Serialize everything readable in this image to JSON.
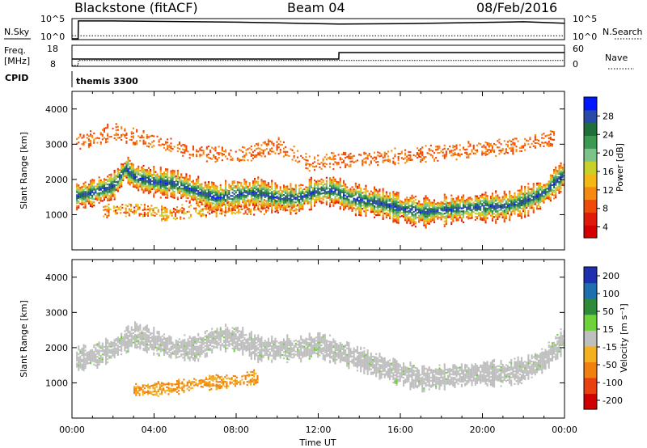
{
  "header": {
    "radar": "Blackstone (fitACF)",
    "beam": "Beam 04",
    "date": "08/Feb/2016"
  },
  "top_panels": {
    "nsky_label": "N.Sky",
    "nsky_ticks": [
      "10^5",
      "10^0"
    ],
    "nsearch_label": "N.Search",
    "nsearch_ticks": [
      "10^5",
      "10^0"
    ],
    "freq_label": "Freq.",
    "freq_unit": "[MHz]",
    "freq_ticks": [
      "18",
      "8"
    ],
    "nave_label": "Nave",
    "nave_ticks": [
      "60",
      "0"
    ],
    "cpid_label": "CPID",
    "cpid_value": "themis 3300"
  },
  "power_panel": {
    "ylabel": "Slant Range [km]",
    "yticks": [
      "4000",
      "3000",
      "2000",
      "1000"
    ],
    "colorbar_label": "Power [dB]",
    "colorbar_ticks": [
      "28",
      "24",
      "20",
      "16",
      "12",
      "8",
      "4"
    ],
    "colorbar_colors": [
      "#0018ff",
      "#2a4aa8",
      "#1f6f3a",
      "#3b9a4f",
      "#7cc38a",
      "#c8d02a",
      "#f3b814",
      "#f58a10",
      "#f04a0a",
      "#e01a0a",
      "#d40000"
    ]
  },
  "velocity_panel": {
    "ylabel": "Slant Range [km]",
    "yticks": [
      "4000",
      "3000",
      "2000",
      "1000"
    ],
    "colorbar_label": "Velocity [m s⁻¹]",
    "colorbar_ticks": [
      "200",
      "100",
      "50",
      "15",
      "-15",
      "-50",
      "-100",
      "-200"
    ],
    "colorbar_colors": [
      "#1e2fb0",
      "#1e6fb0",
      "#2e8b3a",
      "#6ed23a",
      "#bfbfbf",
      "#f3b020",
      "#f08010",
      "#e84010",
      "#d00000"
    ]
  },
  "xaxis": {
    "label": "Time UT",
    "ticks": [
      "00:00",
      "04:00",
      "08:00",
      "12:00",
      "16:00",
      "20:00",
      "00:00"
    ]
  },
  "chart_data": [
    {
      "type": "line",
      "title": "",
      "xlabel": "",
      "ylabel": "N.Sky",
      "x_range_hours": [
        0,
        24
      ],
      "ylim_log10": [
        0,
        5
      ],
      "series": [
        {
          "name": "N.Sky",
          "x": [
            0,
            0.3,
            0.31,
            2,
            4,
            6,
            8,
            10,
            12,
            13,
            16,
            20,
            22,
            24
          ],
          "y": [
            0,
            0,
            4.6,
            4.6,
            4.5,
            4.4,
            4.3,
            4.1,
            3.9,
            3.8,
            3.9,
            4.2,
            4.4,
            4.0
          ]
        },
        {
          "name": "N.Search",
          "x": [
            0,
            4,
            8,
            12,
            16,
            20,
            24
          ],
          "y": [
            0.8,
            0.8,
            0.8,
            0.8,
            0.8,
            0.8,
            0.8
          ]
        }
      ]
    },
    {
      "type": "line",
      "title": "",
      "xlabel": "",
      "ylabel": "Freq. [MHz]",
      "x_range_hours": [
        0,
        24
      ],
      "ylim": [
        8,
        18
      ],
      "series": [
        {
          "name": "Freq.",
          "x": [
            0,
            0.3,
            0.31,
            24
          ],
          "y": [
            8,
            8,
            10.6,
            10.6
          ]
        },
        {
          "name": "Nave",
          "x": [
            0,
            13,
            13.01,
            24
          ],
          "y": [
            20,
            20,
            40,
            40
          ]
        }
      ]
    },
    {
      "type": "heatmap",
      "title": "",
      "xlabel": "Time UT",
      "ylabel": "Slant Range [km]",
      "x_range_hours": [
        0,
        24
      ],
      "ylim": [
        0,
        4500
      ],
      "colorbar": "Power [dB]",
      "clim": [
        0,
        30
      ],
      "bands": [
        {
          "name": "main",
          "x": [
            0.2,
            1,
            2,
            2.6,
            3,
            4,
            5,
            6,
            7,
            8,
            9,
            10,
            11,
            12,
            12.8,
            13.5,
            15,
            16,
            17,
            18,
            19,
            20,
            21,
            22,
            23,
            24
          ],
          "range_km": [
            1550,
            1650,
            1850,
            2350,
            2100,
            1950,
            1900,
            1700,
            1500,
            1600,
            1650,
            1500,
            1500,
            1700,
            1700,
            1500,
            1350,
            1200,
            1100,
            1150,
            1200,
            1250,
            1250,
            1400,
            1650,
            2200
          ],
          "peak_db": 26
        },
        {
          "name": "lower",
          "x": [
            1.5,
            3,
            4.5,
            6,
            8.5,
            10,
            11
          ],
          "range_km": [
            1100,
            1200,
            1050,
            1150,
            1200,
            1300,
            1250
          ],
          "peak_db": 12
        },
        {
          "name": "upper",
          "x": [
            0.2,
            1,
            2,
            4,
            6,
            8,
            10,
            11.5,
            22,
            23.5
          ],
          "range_km": [
            3100,
            3200,
            3400,
            3100,
            2800,
            2700,
            3000,
            2500,
            3000,
            3200
          ],
          "peak_db": 8
        }
      ]
    },
    {
      "type": "heatmap",
      "title": "",
      "xlabel": "Time UT",
      "ylabel": "Slant Range [km]",
      "x_range_hours": [
        0,
        24
      ],
      "ylim": [
        0,
        4500
      ],
      "colorbar": "Velocity [m s⁻¹]",
      "clim": [
        -200,
        200
      ],
      "bands": [
        {
          "name": "ground-scatter",
          "x": [
            0.2,
            1,
            2,
            3,
            4,
            5,
            6,
            7,
            8,
            9,
            10,
            11,
            12,
            13,
            15,
            16,
            17,
            18,
            19,
            20,
            21,
            22,
            23,
            24
          ],
          "range_km": [
            1700,
            1800,
            2000,
            2400,
            2200,
            2000,
            2000,
            2300,
            2300,
            2000,
            2000,
            2000,
            2100,
            1900,
            1500,
            1300,
            1150,
            1200,
            1250,
            1300,
            1300,
            1400,
            1700,
            2300
          ],
          "velocity": 0
        },
        {
          "name": "negative-flow",
          "x": [
            3,
            4,
            5,
            6,
            7,
            8,
            9
          ],
          "range_km": [
            850,
            850,
            900,
            1000,
            1050,
            1100,
            1200
          ],
          "velocity": -80
        }
      ]
    }
  ]
}
